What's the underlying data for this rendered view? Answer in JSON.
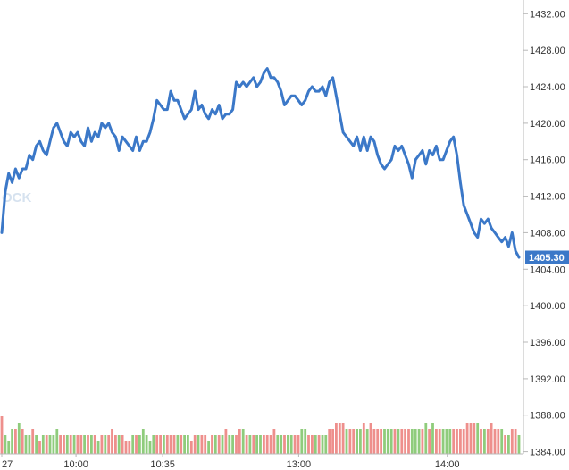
{
  "colors": {
    "price_line": "#3b78c8",
    "volume_up": "#8fcc7c",
    "volume_down": "#ee8f8c",
    "last_price_bg": "#3b78c8",
    "axis_text": "#333333",
    "axis_line": "#b8b8b8"
  },
  "watermark": {
    "text": "OCK"
  },
  "chart_data": {
    "type": "line",
    "title": "",
    "xlabel": "",
    "ylabel": "",
    "x_ticks": [
      {
        "label": "27",
        "minute": 0
      },
      {
        "label": "10:00",
        "minute": 30
      },
      {
        "label": "10:35",
        "minute": 65
      },
      {
        "label": "13:00",
        "minute": 120
      },
      {
        "label": "14:00",
        "minute": 180
      }
    ],
    "y_ticks": [
      "1384.00",
      "1388.00",
      "1392.00",
      "1396.00",
      "1400.00",
      "1404.00",
      "1408.00",
      "1412.00",
      "1416.00",
      "1420.00",
      "1424.00",
      "1428.00",
      "1432.00"
    ],
    "ylim": [
      1382.0,
      1433.5
    ],
    "last_price": "1405.30",
    "series": [
      {
        "values": [
          1408.0,
          1412.5,
          1414.5,
          1413.5,
          1415.0,
          1414.0,
          1415.0,
          1415.0,
          1416.5,
          1416.0,
          1417.5,
          1418.0,
          1417.0,
          1416.5,
          1418.0,
          1419.5,
          1420.0,
          1419.0,
          1418.0,
          1417.5,
          1419.0,
          1418.5,
          1419.0,
          1418.0,
          1417.5,
          1419.5,
          1418.0,
          1419.0,
          1418.5,
          1420.0,
          1419.5,
          1420.0,
          1419.0,
          1418.5,
          1417.0,
          1418.5,
          1418.0,
          1417.5,
          1417.0,
          1418.5,
          1417.0,
          1418.0,
          1418.0,
          1419.0,
          1420.5,
          1422.5,
          1422.0,
          1421.5,
          1421.5,
          1423.5,
          1422.5,
          1422.5,
          1421.5,
          1420.5,
          1421.0,
          1421.5,
          1423.5,
          1421.5,
          1422.0,
          1421.0,
          1420.5,
          1421.5,
          1421.0,
          1422.0,
          1420.5,
          1421.0,
          1421.0,
          1421.5,
          1424.5,
          1424.0,
          1424.5,
          1424.0,
          1424.5,
          1425.0,
          1424.0,
          1424.5,
          1425.5,
          1426.0,
          1425.0,
          1425.0,
          1424.5,
          1423.5,
          1422.0,
          1422.5,
          1423.0,
          1423.0,
          1422.5,
          1422.0,
          1422.5,
          1423.5,
          1424.0,
          1423.5,
          1423.5,
          1424.0,
          1423.0,
          1424.5,
          1425.0,
          1423.0,
          1421.0,
          1419.0,
          1418.5,
          1418.0,
          1417.5,
          1418.5,
          1417.0,
          1418.5,
          1417.0,
          1418.5,
          1418.0,
          1416.5,
          1415.5,
          1415.0,
          1415.5,
          1416.0,
          1417.5,
          1417.0,
          1417.5,
          1416.5,
          1415.5,
          1414.0,
          1416.0,
          1416.5,
          1417.0,
          1415.5,
          1417.0,
          1416.5,
          1417.5,
          1416.0,
          1416.0,
          1417.0,
          1418.0,
          1418.5,
          1416.5,
          1413.5,
          1411.0,
          1410.0,
          1409.0,
          1408.0,
          1407.5,
          1409.5,
          1409.0,
          1409.5,
          1408.5,
          1408.0,
          1407.5,
          1407.0,
          1407.5,
          1406.5,
          1408.0,
          1406.0,
          1405.3
        ]
      }
    ],
    "volume": [
      6,
      3,
      2,
      4,
      4,
      5,
      4,
      3,
      3,
      4,
      3,
      2,
      3,
      3,
      3,
      3,
      4,
      3,
      3,
      3,
      3,
      3,
      3,
      3,
      3,
      3,
      3,
      3,
      2,
      3,
      3,
      3,
      4,
      3,
      3,
      3,
      2,
      2,
      3,
      3,
      3,
      4,
      3,
      2,
      3,
      3,
      3,
      3,
      3,
      3,
      3,
      3,
      3,
      3,
      3,
      2,
      3,
      3,
      3,
      3,
      2,
      3,
      3,
      3,
      3,
      4,
      3,
      3,
      3,
      4,
      4,
      3,
      3,
      3,
      3,
      3,
      3,
      3,
      3,
      4,
      3,
      3,
      3,
      3,
      3,
      3,
      3,
      4,
      4,
      3,
      3,
      3,
      3,
      3,
      3,
      4,
      4,
      5,
      5,
      5,
      4,
      4,
      4,
      4,
      4,
      5,
      4,
      5,
      4,
      4,
      4,
      4,
      4,
      4,
      4,
      4,
      4,
      4,
      4,
      4,
      4,
      4,
      4,
      5,
      4,
      5,
      4,
      4,
      4,
      4,
      4,
      4,
      4,
      4,
      4,
      5,
      5,
      5,
      5,
      4,
      4,
      4,
      5,
      4,
      4,
      4,
      3,
      3,
      4,
      4,
      3
    ],
    "volume_up": [
      false,
      true,
      true,
      true,
      false,
      true,
      false,
      true,
      true,
      false,
      true,
      false,
      true,
      false,
      true,
      true,
      true,
      false,
      false,
      true,
      false,
      true,
      false,
      false,
      true,
      false,
      true,
      false,
      true,
      false,
      true,
      false,
      false,
      false,
      true,
      false,
      false,
      false,
      true,
      false,
      true,
      true,
      true,
      true,
      true,
      false,
      false,
      true,
      false,
      false,
      false,
      true,
      false,
      true,
      true,
      false,
      false,
      true,
      false,
      false,
      true,
      false,
      true,
      false,
      true,
      false,
      true,
      true,
      false,
      false,
      true,
      false,
      true,
      false,
      true,
      true,
      false,
      false,
      false,
      false,
      true,
      true,
      false,
      true,
      true,
      false,
      false,
      true,
      true,
      false,
      false,
      true,
      false,
      true,
      true,
      false,
      false,
      false,
      false,
      false,
      true,
      false,
      false,
      true,
      true,
      false,
      true,
      false,
      false,
      false,
      false,
      true,
      true,
      true,
      false,
      true,
      false,
      false,
      false,
      true,
      true,
      true,
      false,
      true,
      false,
      true,
      false,
      false,
      true,
      true,
      true,
      false,
      false,
      false,
      false,
      false,
      false,
      false,
      true,
      false,
      true,
      false,
      false,
      false,
      false,
      true,
      false,
      true,
      false,
      false,
      true
    ]
  }
}
